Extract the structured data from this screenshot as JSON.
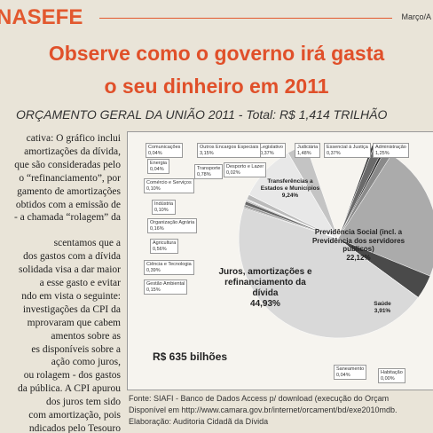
{
  "header": {
    "masthead": "NASEFE",
    "date": "Março/A"
  },
  "title": [
    "Observe como o governo irá gasta",
    "o seu dinheiro em 2011"
  ],
  "subtitle": "ORÇAMENTO GERAL DA UNIÃO 2011 - Total: R$ 1,414 TRILHÃO",
  "body": [
    "cativa: O gráfico inclui",
    "amortizações da dívida,",
    "que são consideradas pelo",
    "o “refinanciamento”, por",
    "gamento de amortizações",
    "obtidos com a emissão de",
    "- a chamada “rolagem” da",
    "scentamos que a",
    "dos gastos com a dívida",
    "solidada visa a dar maior",
    "a esse gasto e evitar",
    "ndo em vista o seguinte:",
    "investigações da CPI da",
    "mprovaram que cabem",
    "amentos sobre as",
    "es disponíveis sobre a",
    "ação como juros,",
    "ou rolagem - dos gastos",
    "da pública. A CPI apurou",
    "dos juros tem sido",
    "com amortização, pois",
    "ndicados pelo Tesouro"
  ],
  "chart_data": {
    "type": "pie",
    "categories": [
      "Legislativo",
      "Judiciária",
      "Essencial à Justiça",
      "Administração",
      "Previdência Social (incl. a Previdência dos servidores públicos)",
      "Saúde",
      "Saneamento",
      "Habitação",
      "Juros, amortizações e refinanciamento da dívida",
      "Gestão Ambiental",
      "Ciência e Tecnologia",
      "Agricultura",
      "Organização Agrária",
      "Indústria",
      "Comércio e Serviços",
      "Energia",
      "Transporte",
      "Desporto e Lazer",
      "Transferências a Estados e Municípios",
      "Comunicações",
      "Outros Encargos Especiais"
    ],
    "values": [
      0.37,
      1.48,
      0.37,
      1.25,
      22.12,
      3.91,
      0.04,
      0,
      44.93,
      0.15,
      0.39,
      0.56,
      0.16,
      0.1,
      0.1,
      0.04,
      0.78,
      0.02,
      9.24,
      0.04,
      3.15
    ],
    "value_labels": [
      "0,37%",
      "1,48%",
      "0,37%",
      "1,25%",
      "22,12%",
      "3,91%",
      "0,04%",
      "0,00%",
      "44,93%",
      "0,15%",
      "0,39%",
      "0,56%",
      "0,16%",
      "0,10%",
      "0,10%",
      "0,04%",
      "0,78%",
      "0,02%",
      "9,24%",
      "0,04%",
      "3,15%"
    ],
    "colors": [
      "#3a3a3a",
      "#6a6a6a",
      "#2a2a2a",
      "#8a8a8a",
      "#ababab",
      "#4a4a4a",
      "#222",
      "#222",
      "#d9d9d9",
      "#777",
      "#999",
      "#666",
      "#888",
      "#555",
      "#aaa",
      "#333",
      "#bbb",
      "#444",
      "#e8e8e8",
      "#111",
      "#c4c4c4"
    ],
    "annotation": "R$ 635 bilhões"
  },
  "source": [
    "Fonte: SIAFI - Banco de Dados Access p/ download (execução do Orçam",
    "Disponível em http://www.camara.gov.br/internet/orcament/bd/exe2010mdb.",
    "Elaboração: Auditoria Cidadã da Dívida"
  ]
}
